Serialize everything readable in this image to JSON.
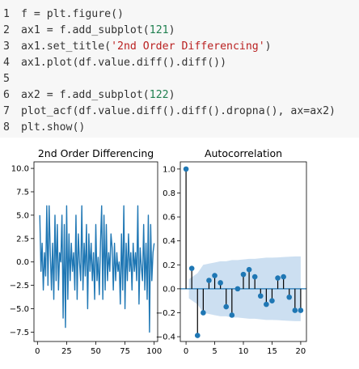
{
  "code": {
    "lines": [
      {
        "n": "1",
        "parts": [
          {
            "t": "f = plt.figure()",
            "c": ""
          }
        ]
      },
      {
        "n": "2",
        "parts": [
          {
            "t": "ax1 = f.add_subplot(",
            "c": ""
          },
          {
            "t": "121",
            "c": "num"
          },
          {
            "t": ")",
            "c": ""
          }
        ]
      },
      {
        "n": "3",
        "parts": [
          {
            "t": "ax1.set_title(",
            "c": ""
          },
          {
            "t": "'2nd Order Differencing'",
            "c": "str"
          },
          {
            "t": ")",
            "c": ""
          }
        ]
      },
      {
        "n": "4",
        "parts": [
          {
            "t": "ax1.plot(df.value.diff().diff())",
            "c": ""
          }
        ]
      },
      {
        "n": "5",
        "parts": []
      },
      {
        "n": "6",
        "parts": [
          {
            "t": "ax2 = f.add_subplot(",
            "c": ""
          },
          {
            "t": "122",
            "c": "num"
          },
          {
            "t": ")",
            "c": ""
          }
        ]
      },
      {
        "n": "7",
        "parts": [
          {
            "t": "plot_acf(df.value.diff().diff().dropna(), ax=ax2)",
            "c": ""
          }
        ]
      },
      {
        "n": "8",
        "parts": [
          {
            "t": "plt.show()",
            "c": ""
          }
        ]
      }
    ]
  },
  "colors": {
    "line": "#1f77b4",
    "stem": "#000000",
    "marker": "#1f77b4",
    "confidence_band": "#c6dbef",
    "string": "#ba2121",
    "number": "#208050",
    "code_bg": "#f7f7f7"
  },
  "chart_data": [
    {
      "type": "line",
      "title": "2nd Order Differencing",
      "xlabel": "",
      "ylabel": "",
      "xlim": [
        -3,
        103
      ],
      "ylim": [
        -8.5,
        10.7
      ],
      "xticks": [
        0,
        25,
        50,
        75,
        100
      ],
      "xtick_labels": [
        "0",
        "25",
        "50",
        "75",
        "100"
      ],
      "yticks": [
        -7.5,
        -5.0,
        -2.5,
        0.0,
        2.5,
        5.0,
        7.5,
        10.0
      ],
      "ytick_labels": [
        "−7.5",
        "−5.0",
        "−2.5",
        "0.0",
        "2.5",
        "5.0",
        "7.5",
        "10.0"
      ],
      "grid": false,
      "series": [
        {
          "x": [
            2,
            3,
            4,
            5,
            6,
            7,
            8,
            9,
            10,
            11,
            12,
            13,
            14,
            15,
            16,
            17,
            18,
            19,
            20,
            21,
            22,
            23,
            24,
            25,
            26,
            27,
            28,
            29,
            30,
            31,
            32,
            33,
            34,
            35,
            36,
            37,
            38,
            39,
            40,
            41,
            42,
            43,
            44,
            45,
            46,
            47,
            48,
            49,
            50,
            51,
            52,
            53,
            54,
            55,
            56,
            57,
            58,
            59,
            60,
            61,
            62,
            63,
            64,
            65,
            66,
            67,
            68,
            69,
            70,
            71,
            72,
            73,
            74,
            75,
            76,
            77,
            78,
            79,
            80,
            81,
            82,
            83,
            84,
            85,
            86,
            87,
            88,
            89,
            90,
            91,
            92,
            93,
            94,
            95,
            96,
            97,
            98,
            99,
            100
          ],
          "y": [
            5.0,
            -1.0,
            2.0,
            -3.0,
            1.0,
            -1.5,
            6.0,
            -2.5,
            6.0,
            1.0,
            -3.0,
            2.0,
            -4.0,
            5.0,
            -2.0,
            4.0,
            -3.0,
            1.0,
            0.0,
            5.0,
            -6.0,
            4.0,
            -7.0,
            6.0,
            -4.0,
            3.0,
            -2.0,
            2.0,
            -1.0,
            1.0,
            -3.0,
            5.0,
            -4.0,
            3.0,
            0.0,
            -2.0,
            6.0,
            -3.0,
            2.0,
            -1.5,
            4.0,
            -5.0,
            3.0,
            -1.0,
            2.0,
            -2.0,
            1.0,
            -4.0,
            4.0,
            -2.0,
            0.5,
            -3.5,
            2.0,
            6.0,
            -4.0,
            5.0,
            -3.0,
            4.0,
            -2.0,
            1.0,
            -1.0,
            3.0,
            1.5,
            -3.0,
            2.0,
            -2.0,
            1.0,
            -1.0,
            0.0,
            -4.5,
            3.0,
            -3.0,
            6.0,
            -5.0,
            2.0,
            -2.0,
            3.0,
            -1.0,
            1.0,
            -3.0,
            2.0,
            -1.0,
            1.0,
            -2.0,
            6.0,
            -4.5,
            1.5,
            -0.5,
            -2.0,
            4.0,
            -3.0,
            2.0,
            -4.0,
            5.0,
            -7.5,
            4.0,
            -2.0,
            1.0,
            2.0
          ]
        }
      ]
    },
    {
      "type": "scatter",
      "title": "Autocorrelation",
      "xlabel": "",
      "ylabel": "",
      "xlim": [
        -1,
        21
      ],
      "ylim": [
        -0.44,
        1.06
      ],
      "xticks": [
        0,
        5,
        10,
        15,
        20
      ],
      "xtick_labels": [
        "0",
        "5",
        "10",
        "15",
        "20"
      ],
      "yticks": [
        -0.4,
        -0.2,
        0.0,
        0.2,
        0.4,
        0.6,
        0.8,
        1.0
      ],
      "ytick_labels": [
        "−0.4",
        "−0.2",
        "0.0",
        "0.2",
        "0.4",
        "0.6",
        "0.8",
        "1.0"
      ],
      "grid": false,
      "lags": [
        0,
        1,
        2,
        3,
        4,
        5,
        6,
        7,
        8,
        9,
        10,
        11,
        12,
        13,
        14,
        15,
        16,
        17,
        18,
        19,
        20
      ],
      "values": [
        1.0,
        0.17,
        -0.39,
        -0.2,
        0.07,
        0.11,
        0.05,
        -0.15,
        -0.22,
        0.0,
        0.12,
        0.16,
        0.1,
        -0.06,
        -0.13,
        -0.1,
        0.09,
        0.1,
        -0.07,
        -0.18,
        -0.18
      ],
      "confidence_upper": [
        0.0,
        0.08,
        0.13,
        0.2,
        0.21,
        0.22,
        0.23,
        0.23,
        0.24,
        0.24,
        0.245,
        0.25,
        0.25,
        0.255,
        0.26,
        0.26,
        0.262,
        0.265,
        0.268,
        0.27,
        0.27
      ],
      "confidence_lower": [
        0.0,
        -0.08,
        -0.13,
        -0.2,
        -0.21,
        -0.22,
        -0.23,
        -0.23,
        -0.24,
        -0.24,
        -0.245,
        -0.25,
        -0.25,
        -0.255,
        -0.26,
        -0.26,
        -0.262,
        -0.265,
        -0.268,
        -0.27,
        -0.27
      ]
    }
  ]
}
